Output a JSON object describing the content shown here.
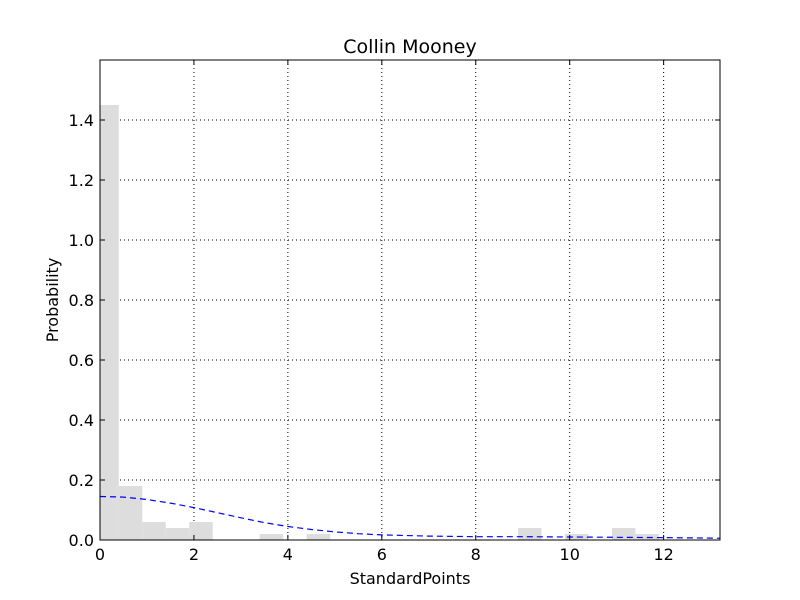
{
  "chart_data": {
    "type": "bar",
    "subtype": "histogram-with-fitted-curve",
    "title": "Collin Mooney",
    "xlabel": "StandardPoints",
    "ylabel": "Probability",
    "xlim": [
      0,
      13.2
    ],
    "ylim": [
      0,
      1.6
    ],
    "xticks": [
      0,
      2,
      4,
      6,
      8,
      10,
      12
    ],
    "yticks": [
      0.0,
      0.2,
      0.4,
      0.6,
      0.8,
      1.0,
      1.2,
      1.4
    ],
    "xtick_labels": [
      "0",
      "2",
      "4",
      "6",
      "8",
      "10",
      "12"
    ],
    "ytick_labels": [
      "0.0",
      "0.2",
      "0.4",
      "0.6",
      "0.8",
      "1.0",
      "1.2",
      "1.4"
    ],
    "grid": true,
    "bar_color": "#dddddd",
    "histogram": {
      "bins": [
        {
          "x0": 0.0,
          "x1": 0.4,
          "value": 1.45
        },
        {
          "x0": 0.4,
          "x1": 0.9,
          "value": 0.18
        },
        {
          "x0": 0.9,
          "x1": 1.4,
          "value": 0.06
        },
        {
          "x0": 1.4,
          "x1": 1.9,
          "value": 0.04
        },
        {
          "x0": 1.9,
          "x1": 2.4,
          "value": 0.06
        },
        {
          "x0": 3.4,
          "x1": 3.9,
          "value": 0.02
        },
        {
          "x0": 4.4,
          "x1": 4.9,
          "value": 0.02
        },
        {
          "x0": 8.9,
          "x1": 9.4,
          "value": 0.04
        },
        {
          "x0": 9.9,
          "x1": 10.4,
          "value": 0.02
        },
        {
          "x0": 10.9,
          "x1": 11.4,
          "value": 0.04
        },
        {
          "x0": 11.4,
          "x1": 11.9,
          "value": 0.02
        }
      ]
    },
    "curve": {
      "style": "dashed",
      "color": "#0000ff",
      "x": [
        0,
        0.5,
        1,
        1.5,
        2,
        2.5,
        3,
        3.5,
        4,
        4.5,
        5,
        5.5,
        6,
        7,
        8,
        9,
        10,
        11,
        12,
        13.2
      ],
      "y": [
        0.145,
        0.143,
        0.135,
        0.123,
        0.108,
        0.091,
        0.074,
        0.058,
        0.045,
        0.035,
        0.027,
        0.021,
        0.017,
        0.013,
        0.011,
        0.011,
        0.01,
        0.009,
        0.008,
        0.006
      ]
    }
  }
}
